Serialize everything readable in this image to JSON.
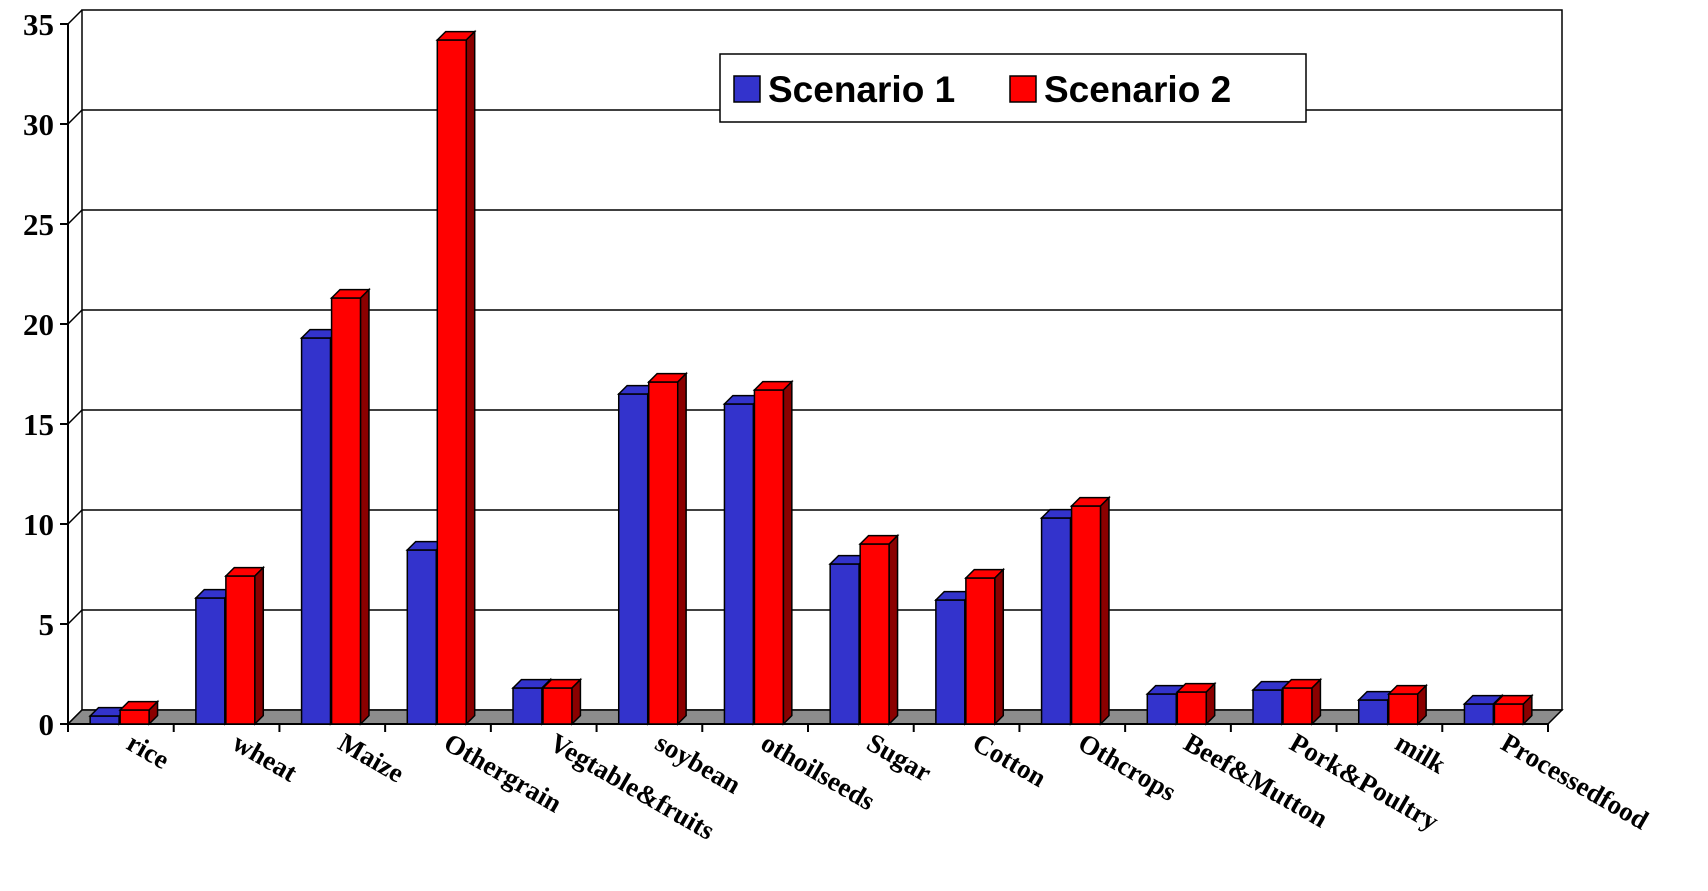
{
  "chart_data": {
    "type": "bar",
    "categories": [
      "rice",
      "wheat",
      "Maize",
      "Othergrain",
      "Vegtable&fruits",
      "soybean",
      "othoilseeds",
      "Sugar",
      "Cotton",
      "Othcrops",
      "Beef&Mutton",
      "Pork&Poultry",
      "milk",
      "Processedfood"
    ],
    "series": [
      {
        "name": "Scenario 1",
        "color": "#3333CC",
        "side_color": "#1A1A80",
        "values": [
          0.4,
          6.3,
          19.3,
          8.7,
          1.8,
          16.5,
          16.0,
          8.0,
          6.2,
          10.3,
          1.5,
          1.7,
          1.2,
          1.0
        ]
      },
      {
        "name": "Scenario 2",
        "color": "#FF0000",
        "side_color": "#8B0000",
        "values": [
          0.7,
          7.4,
          21.3,
          34.2,
          1.8,
          17.1,
          16.7,
          9.0,
          7.3,
          10.9,
          1.6,
          1.8,
          1.5,
          1.0
        ]
      }
    ],
    "ylim": [
      0,
      35
    ],
    "yticks": [
      "0",
      "5",
      "10",
      "15",
      "20",
      "25",
      "30",
      "35"
    ],
    "grid": true,
    "legend_position": "top-right",
    "title": "",
    "xlabel": "",
    "ylabel": ""
  }
}
